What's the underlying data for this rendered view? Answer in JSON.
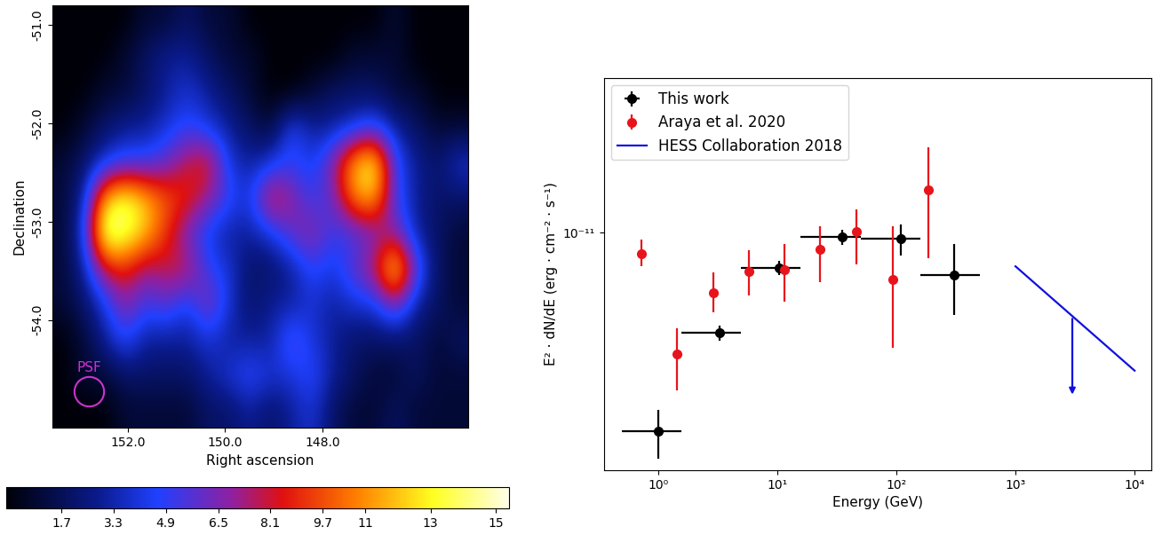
{
  "chart_data": [
    {
      "type": "heatmap",
      "xlabel": "Right ascension",
      "ylabel": "Declination",
      "xlim": [
        153.55,
        145.0
      ],
      "ylim": [
        -55.1,
        -50.8
      ],
      "xticks": [
        152.0,
        150.0,
        148.0
      ],
      "yticks": [
        -51.0,
        -52.0,
        -53.0,
        -54.0
      ],
      "cells": [
        [
          0,
          0,
          0,
          0,
          1,
          1,
          2,
          1,
          1,
          0,
          0,
          0,
          0,
          0,
          0,
          0,
          1,
          0,
          0,
          0
        ],
        [
          0,
          0,
          0,
          1,
          2,
          3,
          3,
          2,
          1,
          1,
          0,
          0,
          0,
          0,
          1,
          1,
          1,
          0,
          0,
          0
        ],
        [
          0,
          0,
          1,
          1,
          2,
          3,
          4,
          3,
          2,
          1,
          0,
          0,
          1,
          2,
          2,
          2,
          1,
          1,
          0,
          0
        ],
        [
          0,
          1,
          2,
          3,
          3,
          4,
          5,
          4,
          3,
          2,
          1,
          5,
          3,
          3,
          4,
          5,
          3,
          2,
          1,
          1
        ],
        [
          1,
          2,
          4,
          5,
          5,
          6,
          8,
          9,
          4,
          3,
          4,
          5,
          4,
          7,
          12,
          14,
          5,
          3,
          2,
          4
        ],
        [
          1,
          3,
          12,
          14,
          12,
          10,
          9,
          7,
          5,
          4,
          9,
          7,
          5,
          6,
          11,
          12,
          5,
          3,
          2,
          2
        ],
        [
          1,
          4,
          15,
          14,
          12,
          9,
          6,
          4,
          3,
          3,
          4,
          6,
          7,
          5,
          5,
          6,
          7,
          3,
          2,
          1
        ],
        [
          1,
          3,
          8,
          9,
          7,
          8,
          8,
          5,
          4,
          2,
          2,
          3,
          5,
          4,
          6,
          8,
          14,
          6,
          2,
          1
        ],
        [
          1,
          2,
          4,
          7,
          5,
          6,
          4,
          7,
          4,
          2,
          3,
          3,
          4,
          3,
          4,
          4,
          7,
          3,
          2,
          1
        ],
        [
          0,
          1,
          3,
          5,
          3,
          3,
          3,
          4,
          3,
          3,
          3,
          6,
          4,
          3,
          2,
          2,
          2,
          2,
          1,
          2
        ],
        [
          0,
          1,
          1,
          2,
          2,
          2,
          2,
          3,
          4,
          5,
          4,
          4,
          5,
          3,
          2,
          1,
          1,
          2,
          1,
          1
        ],
        [
          0,
          0,
          0,
          1,
          1,
          1,
          1,
          2,
          2,
          3,
          2,
          3,
          4,
          2,
          1,
          1,
          2,
          1,
          1,
          1
        ]
      ],
      "colorbar": {
        "range": [
          0.0,
          15.4
        ],
        "ticks": [
          1.7,
          3.3,
          4.9,
          6.5,
          8.1,
          9.7,
          11,
          13,
          15
        ]
      },
      "psf": {
        "label": "PSF",
        "ra": 152.8,
        "dec": -54.73,
        "color": "#cc33cc"
      }
    },
    {
      "type": "scatter",
      "xlabel": "Energy (GeV)",
      "ylabel": "E² · dN/dE (erg · cm⁻² · s⁻¹)",
      "log": true,
      "legend": "upper left",
      "xlim": [
        0.35,
        13800
      ],
      "ylim": [
        2.45e-12,
        2.5e-11
      ],
      "xticks": [
        {
          "value": 1,
          "label": "10⁰"
        },
        {
          "value": 10,
          "label": "10¹"
        },
        {
          "value": 100,
          "label": "10²"
        },
        {
          "value": 1000,
          "label": "10³"
        },
        {
          "value": 10000,
          "label": "10⁴"
        }
      ],
      "yticks": [
        {
          "value": 1e-11,
          "label": "10⁻¹¹"
        }
      ],
      "series": [
        {
          "name": "This work",
          "type": "errorbar",
          "color": "#000000",
          "marker": "o",
          "x": [
            1.0,
            3.3,
            10.3,
            35,
            110,
            305
          ],
          "x_min": [
            0.5,
            1.58,
            5,
            15.8,
            50,
            158
          ],
          "x_max": [
            1.58,
            5,
            15.8,
            50,
            158,
            500
          ],
          "values": [
            3.08e-12,
            5.53e-12,
            8.11e-12,
            9.74e-12,
            9.64e-12,
            7.78e-12
          ],
          "lower": [
            2.62e-12,
            5.27e-12,
            7.78e-12,
            9.29e-12,
            8.73e-12,
            6.15e-12
          ],
          "upper": [
            3.51e-12,
            5.77e-12,
            8.45e-12,
            1.02e-11,
            1.05e-11,
            9.34e-12
          ]
        },
        {
          "name": "Araya et al. 2020",
          "type": "errorbar",
          "color": "#e8141c",
          "marker": "o",
          "x": [
            0.72,
            1.45,
            2.9,
            5.8,
            11.6,
            23,
            46,
            93,
            186
          ],
          "values": [
            8.82e-12,
            4.88e-12,
            7e-12,
            7.94e-12,
            8.03e-12,
            9.05e-12,
            1.01e-11,
            7.58e-12,
            1.29e-11
          ],
          "lower": [
            8.2e-12,
            3.94e-12,
            6.24e-12,
            6.9e-12,
            6.65e-12,
            7.46e-12,
            8.28e-12,
            5.06e-12,
            8.6e-12
          ],
          "upper": [
            9.59e-12,
            5.68e-12,
            7.9e-12,
            9e-12,
            9.34e-12,
            1.04e-11,
            1.15e-11,
            1.04e-11,
            1.66e-11
          ]
        },
        {
          "name": "HESS Collaboration 2018",
          "type": "upper_limit",
          "color": "#1010e0",
          "x": [
            1000,
            10000
          ],
          "values": [
            8.2e-12,
            4.42e-12
          ],
          "arrow": {
            "x": 3000,
            "from": 6.1e-12,
            "to": 3.78e-12
          }
        }
      ]
    }
  ]
}
